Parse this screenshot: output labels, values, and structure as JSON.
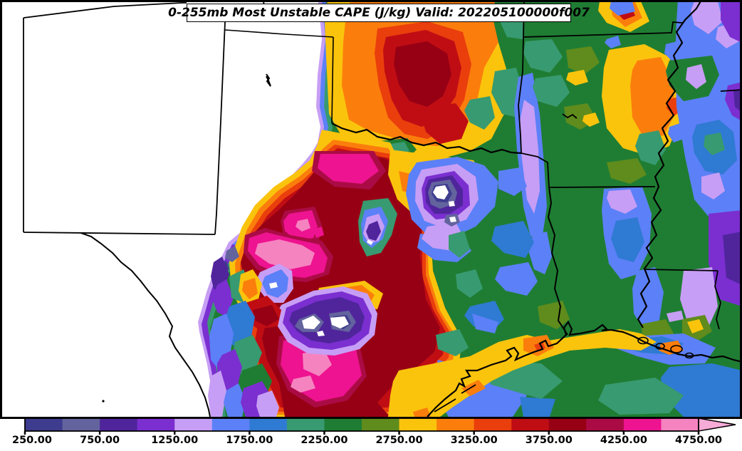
{
  "title": {
    "text": "0-255mb Most Unstable CAPE (J/kg) Valid: 202205100000f007"
  },
  "map": {
    "background": "#ffffff",
    "no_data_color": "#ffffff",
    "frame_color": "#000000",
    "state_line_color": "#000000"
  },
  "colorbar": {
    "orientation": "horizontal",
    "position": "bottom",
    "tick_labels": [
      "250.00",
      "750.00",
      "1250.00",
      "1750.00",
      "2250.00",
      "2750.00",
      "3250.00",
      "3750.00",
      "4250.00",
      "4750.00"
    ],
    "tick_values": [
      250,
      750,
      1250,
      1750,
      2250,
      2750,
      3250,
      3750,
      4250,
      4750
    ],
    "min": 250,
    "max": 4750,
    "over_arrow": true
  },
  "chart_data": {
    "type": "filled_contour_map",
    "title": "0-255mb Most Unstable CAPE (J/kg) Valid: 202205100000f007",
    "parameter": "Most Unstable CAPE",
    "layer": "0-255mb",
    "units": "J/kg",
    "valid": "202205100000f007",
    "contour_interval": 250,
    "contour_levels": [
      250,
      500,
      750,
      1000,
      1250,
      1500,
      1750,
      2000,
      2250,
      2500,
      2750,
      3000,
      3250,
      3500,
      3750,
      4000,
      4250,
      4500,
      4750
    ],
    "colors": [
      "#3e3c8e",
      "#63639e",
      "#50259c",
      "#7b2fd0",
      "#c79ef5",
      "#5c80f7",
      "#2f7ad2",
      "#389a70",
      "#1f7d33",
      "#5f8c1c",
      "#fbc40c",
      "#fb7e0c",
      "#ea3e0d",
      "#c00d14",
      "#970014",
      "#ab0b45",
      "#ee1390",
      "#f583c0",
      "#f7abd7"
    ],
    "colorbar_ticks": [
      250,
      750,
      1250,
      1750,
      2250,
      2750,
      3250,
      3750,
      4250,
      4750
    ],
    "legend_position": "bottom",
    "max_values_region": "exceed 4750 J/kg in west-central Texas (magenta/pink core)",
    "min_values_region": "below 250 J/kg (white) over New Mexico and far west Texas"
  }
}
